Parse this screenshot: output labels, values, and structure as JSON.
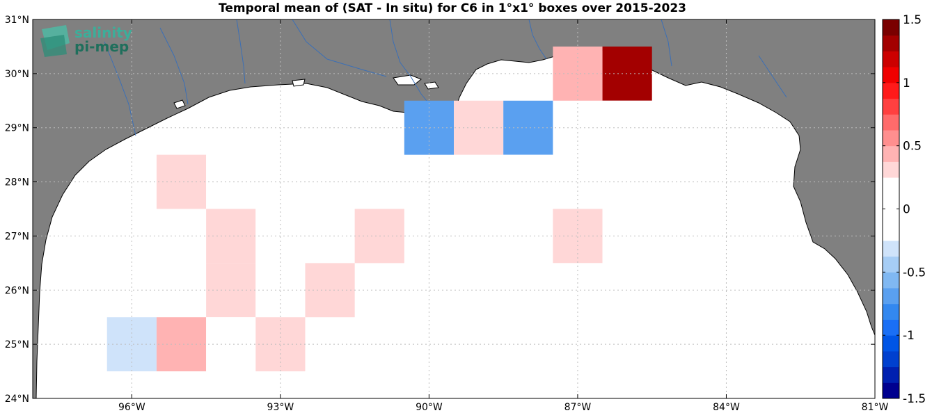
{
  "title": "Temporal mean of (SAT - In situ) for C6 in 1°x1° boxes over 2015-2023",
  "logo": {
    "line1": "salinity",
    "line2": "pi-mep"
  },
  "map": {
    "lon_range": [
      -98,
      -81
    ],
    "lat_range": [
      24,
      31
    ],
    "x_ticks": [
      {
        "lon": -96,
        "label": "96°W"
      },
      {
        "lon": -93,
        "label": "93°W"
      },
      {
        "lon": -90,
        "label": "90°W"
      },
      {
        "lon": -87,
        "label": "87°W"
      },
      {
        "lon": -84,
        "label": "84°W"
      },
      {
        "lon": -81,
        "label": "81°W"
      }
    ],
    "y_ticks": [
      {
        "lat": 24,
        "label": "24°N"
      },
      {
        "lat": 25,
        "label": "25°N"
      },
      {
        "lat": 26,
        "label": "26°N"
      },
      {
        "lat": 27,
        "label": "27°N"
      },
      {
        "lat": 28,
        "label": "28°N"
      },
      {
        "lat": 29,
        "label": "29°N"
      },
      {
        "lat": 30,
        "label": "30°N"
      },
      {
        "lat": 31,
        "label": "31°N"
      }
    ],
    "land_color": "#808080",
    "ocean_color": "#ffffff",
    "river_color": "#3b6fb6",
    "grid": true
  },
  "chart_data": {
    "type": "heatmap",
    "title": "Temporal mean of (SAT - In situ) for C6 in 1°x1° boxes over 2015-2023",
    "units": "",
    "cell_size_deg": 1,
    "color_range": [
      -1.5,
      1.5
    ],
    "colorbar_ticks": [
      {
        "value": 1.5,
        "label": "1.5"
      },
      {
        "value": 1,
        "label": "1"
      },
      {
        "value": 0.5,
        "label": "0.5"
      },
      {
        "value": 0,
        "label": "0"
      },
      {
        "value": -0.5,
        "label": "-0.5"
      },
      {
        "value": -1,
        "label": "-1"
      },
      {
        "value": -1.5,
        "label": "-1.5"
      }
    ],
    "cells": [
      {
        "lon": -86,
        "lat": 30,
        "value": 1.35
      },
      {
        "lon": -87,
        "lat": 30,
        "value": 0.45
      },
      {
        "lon": -89,
        "lat": 29,
        "value": 0.35
      },
      {
        "lon": -90,
        "lat": 29,
        "value": -0.75
      },
      {
        "lon": -88,
        "lat": 29,
        "value": -0.75
      },
      {
        "lon": -86,
        "lat": 29,
        "value": 0.1
      },
      {
        "lon": -95,
        "lat": 28,
        "value": 0.25
      },
      {
        "lon": -94,
        "lat": 28,
        "value": -0.25
      },
      {
        "lon": -93,
        "lat": 28,
        "value": -0.1
      },
      {
        "lon": -92,
        "lat": 28,
        "value": -0.1
      },
      {
        "lon": -91,
        "lat": 28,
        "value": -0.1
      },
      {
        "lon": -88,
        "lat": 28,
        "value": -0.1
      },
      {
        "lon": -96,
        "lat": 27,
        "value": 0.1
      },
      {
        "lon": -95,
        "lat": 27,
        "value": 0.1
      },
      {
        "lon": -94,
        "lat": 27,
        "value": 0.25
      },
      {
        "lon": -93,
        "lat": 27,
        "value": 0.1
      },
      {
        "lon": -92,
        "lat": 27,
        "value": 0.1
      },
      {
        "lon": -91,
        "lat": 27,
        "value": 0.25
      },
      {
        "lon": -87,
        "lat": 27,
        "value": 0.25
      },
      {
        "lon": -86,
        "lat": 27,
        "value": 0.1
      },
      {
        "lon": -95,
        "lat": 26,
        "value": 0.1
      },
      {
        "lon": -94,
        "lat": 26,
        "value": 0.25
      },
      {
        "lon": -93,
        "lat": 26,
        "value": 0.1
      },
      {
        "lon": -92,
        "lat": 26,
        "value": 0.25
      },
      {
        "lon": -90,
        "lat": 26,
        "value": 0.1
      },
      {
        "lon": -87,
        "lat": 26,
        "value": 0.1
      },
      {
        "lon": -96,
        "lat": 25,
        "value": -0.35
      },
      {
        "lon": -95,
        "lat": 25,
        "value": 0.45
      },
      {
        "lon": -94,
        "lat": 25,
        "value": 0.1
      },
      {
        "lon": -93,
        "lat": 25,
        "value": 0.25
      },
      {
        "lon": -87,
        "lat": 25,
        "value": 0.1
      },
      {
        "lon": -86,
        "lat": 25,
        "value": 0.1
      },
      {
        "lon": -85,
        "lat": 25,
        "value": 0.1
      },
      {
        "lon": -83,
        "lat": 25,
        "value": 0.1
      },
      {
        "lon": -82,
        "lat": 25,
        "value": -0.1
      }
    ]
  }
}
